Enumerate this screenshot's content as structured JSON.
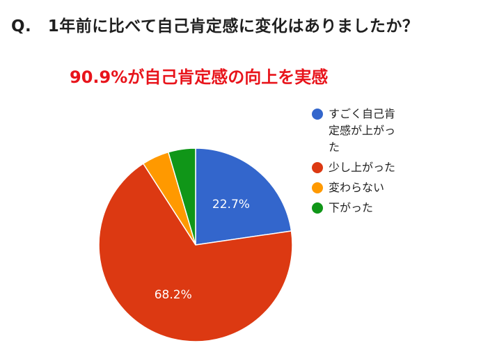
{
  "question": "Q.　1年前に比べて自己肯定感に変化はありましたか？",
  "headline": "90.9%が自己肯定感の向上を実感",
  "chart_data": {
    "type": "pie",
    "title": "",
    "slices": [
      {
        "label": "すごく自己肯定感が上がった",
        "value": 22.7,
        "display": "22.7%",
        "color": "#3366cc"
      },
      {
        "label": "少し上がった",
        "value": 68.2,
        "display": "68.2%",
        "color": "#dc3912"
      },
      {
        "label": "変わらない",
        "value": 4.55,
        "display": "",
        "color": "#ff9900"
      },
      {
        "label": "下がった",
        "value": 4.55,
        "display": "",
        "color": "#109618"
      }
    ],
    "legend_position": "right"
  }
}
